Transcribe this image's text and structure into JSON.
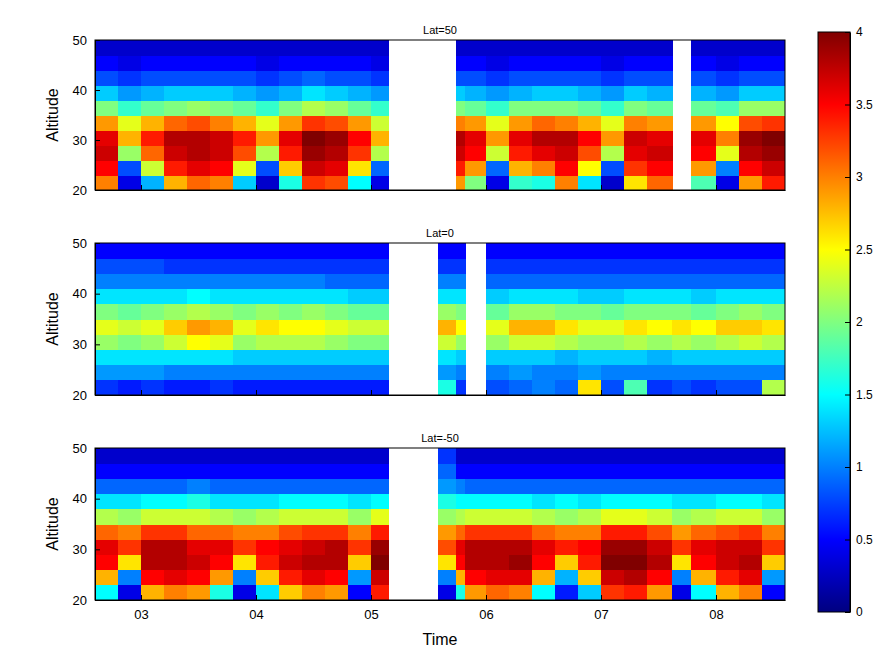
{
  "chart_data": [
    {
      "type": "heatmap",
      "title": "Lat=50",
      "ylabel": "Altitude",
      "xlim": [
        2.6,
        8.6
      ],
      "xticks": [
        3,
        4,
        5,
        6,
        7,
        8
      ],
      "ylim": [
        20,
        50
      ],
      "yticks": [
        20,
        30,
        40,
        50
      ],
      "tick_labels": "y",
      "xbins": [
        2.6,
        2.8,
        3.0,
        3.2,
        3.4,
        3.6,
        3.8,
        4.0,
        4.2,
        4.4,
        4.6,
        4.8,
        5.0,
        5.15,
        5.58,
        5.74,
        5.82,
        6.0,
        6.2,
        6.4,
        6.6,
        6.8,
        7.0,
        7.2,
        7.4,
        7.62,
        7.78,
        8.0,
        8.2,
        8.4,
        8.6
      ],
      "ybins": [
        20,
        23,
        26,
        29,
        32,
        35,
        38,
        41,
        44,
        47,
        50
      ],
      "cells": [
        [
          3.0,
          0.4,
          1.2,
          2.8,
          3.1,
          3.0,
          1.3,
          0.3,
          1.6,
          3.3,
          3.2,
          1.5,
          0.4,
          null,
          null,
          2.9,
          2.0,
          0.4,
          1.7,
          1.6,
          3.0,
          1.4,
          0.3,
          2.6,
          3.1,
          null,
          1.8,
          0.4,
          2.9,
          3.4
        ],
        [
          3.5,
          0.8,
          2.3,
          3.4,
          3.6,
          3.5,
          2.4,
          0.8,
          2.7,
          3.7,
          3.6,
          2.6,
          0.9,
          null,
          null,
          3.4,
          2.9,
          0.9,
          2.8,
          3.0,
          3.5,
          2.5,
          0.8,
          3.3,
          3.5,
          null,
          2.9,
          1.0,
          3.5,
          3.7
        ],
        [
          3.7,
          2.1,
          3.1,
          3.7,
          3.8,
          3.7,
          3.2,
          2.2,
          3.4,
          3.9,
          3.8,
          3.3,
          2.2,
          null,
          null,
          3.7,
          3.5,
          2.3,
          3.4,
          3.6,
          3.7,
          3.2,
          2.2,
          3.6,
          3.7,
          null,
          3.5,
          2.4,
          3.8,
          3.9
        ],
        [
          3.6,
          2.8,
          3.4,
          3.8,
          3.8,
          3.7,
          3.4,
          2.9,
          3.6,
          4.0,
          3.9,
          3.5,
          2.8,
          null,
          null,
          3.8,
          3.6,
          2.9,
          3.6,
          3.8,
          3.8,
          3.5,
          2.9,
          3.7,
          3.6,
          null,
          3.6,
          3.0,
          3.9,
          4.0
        ],
        [
          2.9,
          2.4,
          2.8,
          3.1,
          3.2,
          3.0,
          2.8,
          2.4,
          2.9,
          3.3,
          3.2,
          2.9,
          2.3,
          null,
          null,
          3.0,
          2.9,
          2.4,
          2.9,
          3.1,
          3.0,
          2.8,
          2.4,
          3.0,
          2.9,
          null,
          2.9,
          2.5,
          3.2,
          3.3
        ],
        [
          2.0,
          1.7,
          1.9,
          2.0,
          2.1,
          2.0,
          1.9,
          1.7,
          2.0,
          2.2,
          2.1,
          1.9,
          1.7,
          null,
          null,
          2.0,
          1.9,
          1.7,
          2.0,
          2.0,
          2.0,
          1.9,
          1.7,
          2.0,
          1.9,
          null,
          1.9,
          1.8,
          2.1,
          2.1
        ],
        [
          1.3,
          1.1,
          1.2,
          1.3,
          1.3,
          1.3,
          1.2,
          1.1,
          1.2,
          1.4,
          1.3,
          1.2,
          1.1,
          null,
          null,
          1.3,
          1.2,
          1.1,
          1.2,
          1.3,
          1.3,
          1.2,
          1.1,
          1.3,
          1.2,
          null,
          1.2,
          1.1,
          1.3,
          1.3
        ],
        [
          0.8,
          0.7,
          0.8,
          0.8,
          0.8,
          0.8,
          0.8,
          0.7,
          0.8,
          0.9,
          0.8,
          0.8,
          0.7,
          null,
          null,
          0.8,
          0.8,
          0.7,
          0.8,
          0.8,
          0.8,
          0.8,
          0.7,
          0.8,
          0.8,
          null,
          0.8,
          0.7,
          0.8,
          0.8
        ],
        [
          0.5,
          0.4,
          0.5,
          0.5,
          0.5,
          0.5,
          0.5,
          0.4,
          0.5,
          0.5,
          0.5,
          0.5,
          0.4,
          null,
          null,
          0.5,
          0.5,
          0.4,
          0.5,
          0.5,
          0.5,
          0.5,
          0.4,
          0.5,
          0.5,
          null,
          0.5,
          0.4,
          0.5,
          0.5
        ],
        [
          0.3,
          0.3,
          0.3,
          0.3,
          0.3,
          0.3,
          0.3,
          0.3,
          0.3,
          0.3,
          0.3,
          0.3,
          0.3,
          null,
          null,
          0.3,
          0.3,
          0.3,
          0.3,
          0.3,
          0.3,
          0.3,
          0.3,
          0.3,
          0.3,
          null,
          0.3,
          0.3,
          0.3,
          0.3
        ]
      ],
      "colorbar": {
        "lim": [
          0,
          4
        ],
        "ticks": [
          0,
          0.5,
          1,
          1.5,
          2,
          2.5,
          3,
          3.5,
          4
        ]
      }
    },
    {
      "type": "heatmap",
      "title": "Lat=0",
      "ylabel": "Altitude",
      "xlim": [
        2.6,
        8.6
      ],
      "xticks": [
        3,
        4,
        5,
        6,
        7,
        8
      ],
      "ylim": [
        20,
        50
      ],
      "yticks": [
        20,
        30,
        40,
        50
      ],
      "tick_labels": "y",
      "xbins": [
        2.6,
        2.8,
        3.0,
        3.2,
        3.4,
        3.6,
        3.8,
        4.0,
        4.2,
        4.4,
        4.6,
        4.8,
        5.0,
        5.15,
        5.58,
        5.74,
        5.82,
        6.0,
        6.2,
        6.4,
        6.6,
        6.8,
        7.0,
        7.2,
        7.4,
        7.62,
        7.78,
        8.0,
        8.2,
        8.4,
        8.6
      ],
      "ybins": [
        20,
        23,
        26,
        29,
        32,
        35,
        38,
        41,
        44,
        47,
        50
      ],
      "cells": [
        [
          0.7,
          0.6,
          0.7,
          0.6,
          0.6,
          0.7,
          0.6,
          0.6,
          0.6,
          0.6,
          0.6,
          0.6,
          0.6,
          null,
          1.6,
          0.7,
          null,
          0.8,
          0.9,
          1.0,
          0.9,
          2.6,
          0.8,
          1.8,
          0.7,
          0.8,
          0.7,
          0.8,
          0.8,
          2.2
        ],
        [
          1.1,
          1.1,
          1.1,
          1.0,
          1.0,
          1.0,
          1.0,
          1.0,
          1.0,
          1.0,
          1.0,
          1.0,
          1.0,
          null,
          1.1,
          1.0,
          null,
          1.0,
          1.1,
          1.0,
          1.0,
          1.1,
          1.0,
          1.0,
          1.0,
          1.0,
          1.0,
          1.0,
          1.0,
          1.0
        ],
        [
          1.4,
          1.4,
          1.4,
          1.4,
          1.4,
          1.4,
          1.3,
          1.3,
          1.3,
          1.3,
          1.3,
          1.3,
          1.3,
          null,
          1.4,
          1.3,
          null,
          1.3,
          1.3,
          1.3,
          1.2,
          1.3,
          1.3,
          1.3,
          1.2,
          1.3,
          1.3,
          1.3,
          1.3,
          1.3
        ],
        [
          2.1,
          2.0,
          2.1,
          2.3,
          2.5,
          2.4,
          2.1,
          2.2,
          2.2,
          2.2,
          2.1,
          2.0,
          2.0,
          null,
          2.3,
          2.1,
          null,
          2.1,
          2.3,
          2.3,
          2.2,
          2.1,
          2.1,
          2.2,
          2.1,
          2.2,
          2.1,
          2.2,
          2.3,
          2.2
        ],
        [
          2.4,
          2.3,
          2.4,
          2.7,
          2.9,
          2.8,
          2.4,
          2.6,
          2.5,
          2.5,
          2.4,
          2.3,
          2.3,
          null,
          2.8,
          2.5,
          null,
          2.4,
          2.8,
          2.8,
          2.6,
          2.4,
          2.4,
          2.6,
          2.5,
          2.6,
          2.5,
          2.7,
          2.7,
          2.6
        ],
        [
          2.0,
          1.9,
          2.0,
          2.1,
          2.2,
          2.1,
          2.0,
          2.1,
          2.0,
          2.1,
          2.0,
          1.9,
          1.9,
          null,
          2.1,
          2.0,
          null,
          1.9,
          2.1,
          2.1,
          2.0,
          2.0,
          1.9,
          2.0,
          2.0,
          2.0,
          1.9,
          2.0,
          2.1,
          2.0
        ],
        [
          1.4,
          1.4,
          1.4,
          1.4,
          1.5,
          1.4,
          1.4,
          1.4,
          1.4,
          1.4,
          1.4,
          1.3,
          1.3,
          null,
          1.4,
          1.4,
          null,
          1.3,
          1.4,
          1.4,
          1.4,
          1.3,
          1.3,
          1.4,
          1.4,
          1.4,
          1.3,
          1.4,
          1.4,
          1.4
        ],
        [
          1.0,
          1.0,
          1.0,
          1.0,
          1.0,
          1.0,
          1.0,
          1.0,
          1.0,
          1.0,
          0.9,
          0.9,
          0.9,
          null,
          1.0,
          1.0,
          null,
          0.9,
          0.9,
          0.9,
          0.9,
          0.9,
          0.9,
          0.9,
          0.9,
          0.9,
          0.9,
          0.9,
          0.9,
          0.9
        ],
        [
          0.8,
          0.8,
          0.8,
          0.7,
          0.7,
          0.7,
          0.7,
          0.7,
          0.7,
          0.7,
          0.7,
          0.7,
          0.7,
          null,
          0.7,
          0.7,
          null,
          0.7,
          0.7,
          0.7,
          0.7,
          0.7,
          0.7,
          0.7,
          0.7,
          0.7,
          0.7,
          0.7,
          0.7,
          0.7
        ],
        [
          0.5,
          0.5,
          0.5,
          0.5,
          0.5,
          0.5,
          0.5,
          0.5,
          0.5,
          0.5,
          0.5,
          0.5,
          0.5,
          null,
          0.5,
          0.5,
          null,
          0.5,
          0.5,
          0.5,
          0.5,
          0.5,
          0.5,
          0.5,
          0.5,
          0.5,
          0.5,
          0.5,
          0.5,
          0.5
        ]
      ]
    },
    {
      "type": "heatmap",
      "title": "Lat=-50",
      "ylabel": "Altitude",
      "xlabel": "Time",
      "xlim": [
        2.6,
        8.6
      ],
      "xticks": [
        {
          "value": 3,
          "label": "03"
        },
        {
          "value": 4,
          "label": "04"
        },
        {
          "value": 5,
          "label": "05"
        },
        {
          "value": 6,
          "label": "06"
        },
        {
          "value": 7,
          "label": "07"
        },
        {
          "value": 8,
          "label": "08"
        }
      ],
      "ylim": [
        20,
        50
      ],
      "yticks": [
        20,
        30,
        40,
        50
      ],
      "xbins": [
        2.6,
        2.8,
        3.0,
        3.2,
        3.4,
        3.6,
        3.8,
        4.0,
        4.2,
        4.4,
        4.6,
        4.8,
        5.0,
        5.15,
        5.58,
        5.74,
        5.82,
        6.0,
        6.2,
        6.4,
        6.6,
        6.8,
        7.0,
        7.2,
        7.4,
        7.62,
        7.78,
        8.0,
        8.2,
        8.4,
        8.6
      ],
      "ybins": [
        20,
        23,
        26,
        29,
        32,
        35,
        38,
        41,
        44,
        47,
        50
      ],
      "cells": [
        [
          1.5,
          0.4,
          2.8,
          3.0,
          2.9,
          1.6,
          0.4,
          1.4,
          2.7,
          3.0,
          2.9,
          0.5,
          3.4,
          null,
          0.4,
          1.6,
          2.9,
          3.1,
          3.0,
          1.5,
          0.6,
          1.3,
          3.3,
          3.4,
          2.9,
          0.4,
          1.5,
          2.8,
          3.0,
          0.5
        ],
        [
          2.8,
          1.0,
          3.5,
          3.6,
          3.5,
          2.9,
          1.0,
          2.7,
          3.4,
          3.6,
          3.5,
          1.1,
          3.7,
          null,
          1.0,
          2.8,
          3.5,
          3.6,
          3.6,
          2.8,
          1.2,
          2.7,
          3.7,
          3.8,
          3.5,
          1.0,
          2.8,
          3.4,
          3.6,
          1.1
        ],
        [
          3.5,
          2.6,
          3.8,
          3.8,
          3.7,
          3.5,
          2.6,
          3.4,
          3.7,
          3.8,
          3.8,
          2.7,
          4.0,
          null,
          2.6,
          3.5,
          3.8,
          3.8,
          3.9,
          3.5,
          2.7,
          3.4,
          4.0,
          4.0,
          3.8,
          2.6,
          3.5,
          3.7,
          3.8,
          2.7
        ],
        [
          3.6,
          3.3,
          3.8,
          3.8,
          3.6,
          3.6,
          3.3,
          3.5,
          3.6,
          3.7,
          3.8,
          3.3,
          3.9,
          null,
          3.2,
          3.6,
          3.8,
          3.8,
          3.8,
          3.6,
          3.4,
          3.5,
          3.9,
          3.9,
          3.7,
          3.3,
          3.6,
          3.7,
          3.7,
          3.3
        ],
        [
          3.1,
          3.0,
          3.3,
          3.3,
          3.1,
          3.1,
          3.0,
          3.0,
          3.2,
          3.3,
          3.3,
          3.0,
          3.4,
          null,
          2.9,
          3.1,
          3.3,
          3.3,
          3.3,
          3.1,
          3.0,
          3.0,
          3.4,
          3.4,
          3.2,
          2.9,
          3.1,
          3.2,
          3.3,
          3.0
        ],
        [
          2.2,
          2.1,
          2.3,
          2.3,
          2.3,
          2.2,
          2.1,
          2.2,
          2.3,
          2.3,
          2.3,
          2.1,
          2.4,
          null,
          2.1,
          2.2,
          2.3,
          2.3,
          2.3,
          2.2,
          2.1,
          2.2,
          2.4,
          2.4,
          2.3,
          2.1,
          2.2,
          2.3,
          2.3,
          2.1
        ],
        [
          1.4,
          1.4,
          1.5,
          1.5,
          1.6,
          1.4,
          1.4,
          1.4,
          1.5,
          1.5,
          1.5,
          1.4,
          1.5,
          null,
          1.6,
          1.5,
          1.5,
          1.5,
          1.5,
          1.4,
          1.5,
          1.4,
          1.5,
          1.5,
          1.5,
          1.4,
          1.4,
          1.5,
          1.5,
          1.4
        ],
        [
          0.9,
          0.9,
          0.9,
          0.9,
          1.0,
          0.9,
          0.9,
          0.9,
          0.9,
          0.9,
          0.9,
          0.9,
          0.9,
          null,
          1.1,
          1.0,
          0.9,
          0.9,
          0.9,
          0.9,
          0.9,
          0.9,
          0.9,
          0.9,
          0.9,
          0.9,
          0.9,
          0.9,
          0.9,
          0.9
        ],
        [
          0.5,
          0.5,
          0.5,
          0.5,
          0.5,
          0.5,
          0.5,
          0.5,
          0.5,
          0.5,
          0.5,
          0.5,
          0.5,
          null,
          0.9,
          0.5,
          0.5,
          0.5,
          0.5,
          0.5,
          0.5,
          0.5,
          0.5,
          0.5,
          0.5,
          0.5,
          0.5,
          0.5,
          0.5,
          0.5
        ],
        [
          0.3,
          0.3,
          0.3,
          0.3,
          0.3,
          0.3,
          0.3,
          0.3,
          0.3,
          0.3,
          0.3,
          0.3,
          0.3,
          null,
          0.7,
          0.3,
          0.3,
          0.3,
          0.3,
          0.3,
          0.3,
          0.3,
          0.3,
          0.3,
          0.3,
          0.3,
          0.3,
          0.3,
          0.3,
          0.3
        ]
      ]
    }
  ]
}
